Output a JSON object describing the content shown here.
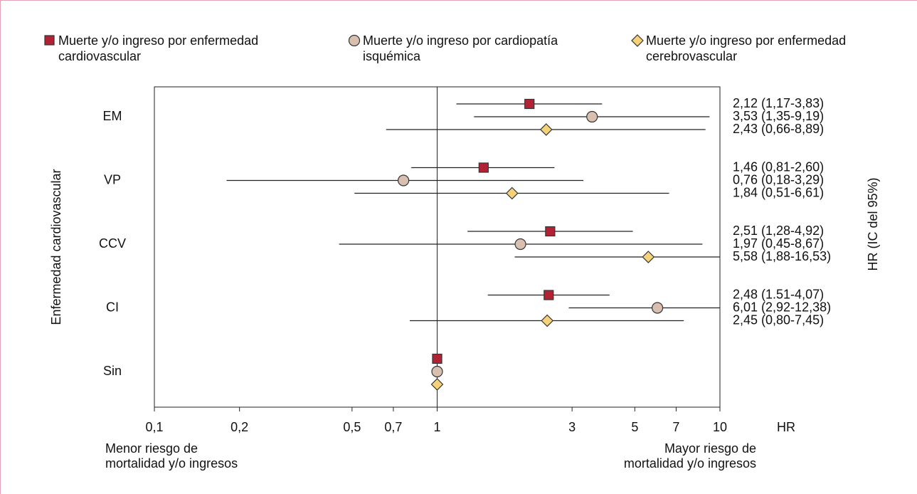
{
  "chart_data": {
    "type": "forest",
    "categories": [
      "EM",
      "VP",
      "CCV",
      "CI",
      "Sin"
    ],
    "series": [
      {
        "name": "Muerte y/o ingreso por enfermedad cardiovascular",
        "color": "#b22234",
        "marker": "square",
        "values": [
          2.12,
          1.46,
          2.51,
          2.48,
          1
        ],
        "lower": [
          1.17,
          0.81,
          1.28,
          1.51,
          null
        ],
        "upper": [
          3.83,
          2.6,
          4.92,
          4.07,
          null
        ],
        "value_labels": [
          "2,12 (1,17-3,83)",
          "1,46 (0,81-2,60)",
          "2,51 (1,28-4,92)",
          "2,48 (1.51-4,07)",
          null
        ]
      },
      {
        "name": "Muerte y/o ingreso por cardiopatía isquémica",
        "color": "#d9bfb0",
        "marker": "circle",
        "values": [
          3.53,
          0.76,
          1.97,
          6.01,
          1
        ],
        "lower": [
          1.35,
          0.18,
          0.45,
          2.92,
          null
        ],
        "upper": [
          9.19,
          3.29,
          8.67,
          12.38,
          null
        ],
        "value_labels": [
          "3,53 (1,35-9,19)",
          "0,76 (0,18-3,29)",
          "1,97 (0,45-8,67)",
          "6,01 (2,92-12,38)",
          null
        ]
      },
      {
        "name": "Muerte y/o ingreso por enfermedad cerebrovascular",
        "color": "#f5d27a",
        "marker": "diamond",
        "values": [
          2.43,
          1.84,
          5.58,
          2.45,
          1
        ],
        "lower": [
          0.66,
          0.51,
          1.88,
          0.8,
          null
        ],
        "upper": [
          8.89,
          6.61,
          16.53,
          7.45,
          null
        ],
        "value_labels": [
          "2,43 (0,66-8,89)",
          "1,84 (0,51-6,61)",
          "5,58 (1,88-16,53)",
          "2,45 (0,80-7,45)",
          null
        ]
      }
    ],
    "x_scale": "log",
    "xlim": [
      0.1,
      10
    ],
    "xticks": [
      {
        "value": 0.1,
        "label": "0,1"
      },
      {
        "value": 0.2,
        "label": "0,2"
      },
      {
        "value": 0.5,
        "label": "0,5"
      },
      {
        "value": 0.7,
        "label": "0,7"
      },
      1,
      3,
      5,
      7,
      10
    ],
    "x_label": "HR",
    "y_label": "Enfermedad cardiovascular",
    "y2_label": "HR (IC del 95%)",
    "left_note": [
      "Menor riesgo de",
      "mortalidad y/o ingresos"
    ],
    "right_note": [
      "Mayor riesgo de",
      "mortalidad y/o ingresos"
    ]
  }
}
